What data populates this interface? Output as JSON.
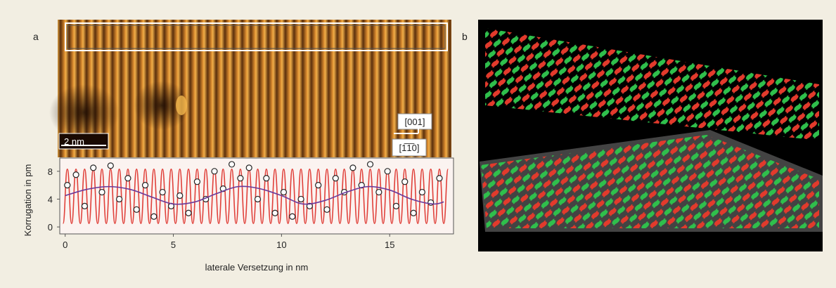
{
  "labels": {
    "panel_a": "a",
    "panel_b": "b",
    "scale_bar": "2 nm",
    "direction_1": "[001]",
    "direction_2": "[1̅1̅0]"
  },
  "chart_data": {
    "type": "line",
    "xlabel": "laterale Versetzung in nm",
    "ylabel": "Korrugation in pm",
    "xlim": [
      -0.25,
      17.95
    ],
    "ylim": [
      -1,
      9.9
    ],
    "xticks": [
      0,
      5,
      10,
      15
    ],
    "yticks": [
      0,
      4,
      8
    ],
    "series": [
      {
        "kind": "line",
        "color": "#e0403a",
        "x": [
          -0.1,
          0.1,
          0.3,
          0.5,
          0.7,
          0.9,
          1.1,
          1.3,
          1.5,
          1.7,
          1.9,
          2.1,
          2.3,
          2.5,
          2.7,
          2.9,
          3.1,
          3.3,
          3.5,
          3.7,
          3.9,
          4.1,
          4.3,
          4.5,
          4.7,
          4.9,
          5.1,
          5.3,
          5.5,
          5.7,
          5.9,
          6.1,
          6.3,
          6.5,
          6.7,
          6.9,
          7.1,
          7.3,
          7.5,
          7.7,
          7.9,
          8.1,
          8.3,
          8.5,
          8.7,
          8.9,
          9.1,
          9.3,
          9.5,
          9.7,
          9.9,
          10.1,
          10.3,
          10.5,
          10.7,
          10.9,
          11.1,
          11.3,
          11.5,
          11.7,
          11.9,
          12.1,
          12.3,
          12.5,
          12.7,
          12.9,
          13.1,
          13.3,
          13.5,
          13.7,
          13.9,
          14.1,
          14.3,
          14.5,
          14.7,
          14.9,
          15.1,
          15.3,
          15.5,
          15.7,
          15.9,
          16.1,
          16.3,
          16.5,
          16.7,
          16.9,
          17.1,
          17.3,
          17.5,
          17.7
        ],
        "values": [
          0.5,
          8.3,
          0.5,
          8.3,
          0.5,
          8.3,
          0.5,
          8.3,
          0.5,
          8.3,
          0.5,
          8.3,
          0.5,
          8.3,
          0.5,
          8.3,
          0.5,
          8.3,
          0.5,
          8.3,
          0.5,
          8.3,
          0.5,
          8.3,
          0.5,
          8.3,
          0.5,
          8.3,
          0.5,
          8.3,
          0.5,
          8.3,
          0.5,
          8.3,
          0.5,
          8.3,
          0.5,
          8.3,
          0.5,
          8.3,
          0.5,
          8.3,
          0.5,
          8.3,
          0.5,
          8.3,
          0.5,
          8.3,
          0.5,
          8.3,
          0.5,
          8.3,
          0.5,
          8.3,
          0.5,
          8.3,
          0.5,
          8.3,
          0.5,
          8.3,
          0.5,
          8.3,
          0.5,
          8.3,
          0.5,
          8.3,
          0.5,
          8.3,
          0.5,
          8.3,
          0.5,
          8.3,
          0.5,
          8.3,
          0.5,
          8.3,
          0.5,
          8.3,
          0.5,
          8.3,
          0.5,
          8.3,
          0.5,
          8.3,
          0.5,
          8.3,
          0.5,
          8.3,
          0.5,
          8.3
        ]
      },
      {
        "kind": "points",
        "color": "#222222",
        "x": [
          0.1,
          0.5,
          0.9,
          1.3,
          1.7,
          2.1,
          2.5,
          2.9,
          3.3,
          3.7,
          4.1,
          4.5,
          4.9,
          5.3,
          5.7,
          6.1,
          6.5,
          6.9,
          7.3,
          7.7,
          8.1,
          8.5,
          8.9,
          9.3,
          9.7,
          10.1,
          10.5,
          10.9,
          11.3,
          11.7,
          12.1,
          12.5,
          12.9,
          13.3,
          13.7,
          14.1,
          14.5,
          14.9,
          15.3,
          15.7,
          16.1,
          16.5,
          16.9,
          17.3
        ],
        "values": [
          6,
          7.5,
          3,
          8.5,
          5,
          8.8,
          4,
          7,
          2.5,
          6,
          1.5,
          5,
          3,
          4.5,
          2,
          6.5,
          4,
          8,
          5.5,
          9,
          7,
          8.5,
          4,
          7,
          2,
          5,
          1.5,
          4,
          3,
          6,
          2.5,
          7,
          5,
          8.5,
          6,
          9,
          5,
          8,
          3,
          6.5,
          2,
          5,
          3.5,
          7
        ]
      },
      {
        "kind": "line",
        "color": "#6a3a9a",
        "x": [
          0,
          1,
          2,
          3,
          4,
          5,
          6,
          7,
          8,
          9,
          10,
          11,
          12,
          13,
          14,
          15,
          16,
          17,
          17.5
        ],
        "values": [
          4.5,
          5.4,
          5.8,
          5.4,
          4.3,
          3.3,
          3.6,
          4.8,
          5.8,
          5.5,
          4.5,
          3.3,
          3.8,
          5.0,
          5.8,
          5.3,
          4.0,
          3.3,
          3.6
        ]
      }
    ]
  }
}
